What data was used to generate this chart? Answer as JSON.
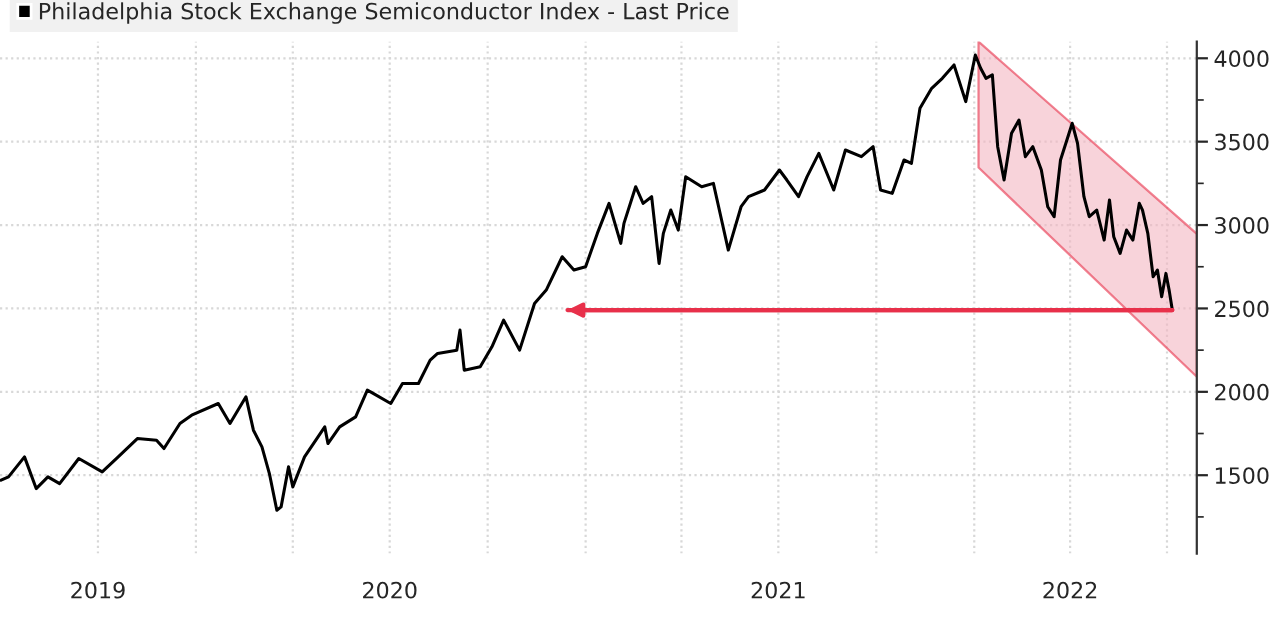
{
  "chart_data": {
    "type": "line",
    "x": [
      "2019-07-02",
      "2019-07-09",
      "2019-07-24",
      "2019-08-04",
      "2019-08-15",
      "2019-08-26",
      "2019-09-13",
      "2019-10-05",
      "2019-10-20",
      "2019-11-07",
      "2019-11-25",
      "2019-12-02",
      "2019-12-17",
      "2019-12-28",
      "2020-01-22",
      "2020-02-02",
      "2020-02-17",
      "2020-02-24",
      "2020-03-03",
      "2020-03-10",
      "2020-03-17",
      "2020-03-21",
      "2020-03-28",
      "2020-04-01",
      "2020-04-12",
      "2020-05-01",
      "2020-05-04",
      "2020-05-15",
      "2020-05-30",
      "2020-06-10",
      "2020-06-13",
      "2020-07-02",
      "2020-07-13",
      "2020-07-28",
      "2020-08-08",
      "2020-08-15",
      "2020-09-02",
      "2020-09-05",
      "2020-09-09",
      "2020-09-24",
      "2020-10-05",
      "2020-10-16",
      "2020-10-31",
      "2020-11-14",
      "2020-11-25",
      "2020-12-10",
      "2020-12-21",
      "2021-01-01",
      "2021-01-12",
      "2021-01-23",
      "2021-02-03",
      "2021-02-06",
      "2021-02-17",
      "2021-02-24",
      "2021-03-04",
      "2021-03-11",
      "2021-03-15",
      "2021-03-22",
      "2021-03-29",
      "2021-04-05",
      "2021-04-20",
      "2021-05-01",
      "2021-05-08",
      "2021-05-15",
      "2021-05-27",
      "2021-06-03",
      "2021-06-18",
      "2021-07-02",
      "2021-07-09",
      "2021-07-20",
      "2021-07-28",
      "2021-08-08",
      "2021-08-22",
      "2021-09-02",
      "2021-09-17",
      "2021-09-28",
      "2021-10-05",
      "2021-10-16",
      "2021-10-27",
      "2021-11-03",
      "2021-11-11",
      "2021-11-22",
      "2021-12-02",
      "2021-12-13",
      "2021-12-24",
      "2022-01-02",
      "2022-01-07",
      "2022-01-12",
      "2022-01-18",
      "2022-01-23",
      "2022-01-29",
      "2022-02-05",
      "2022-02-12",
      "2022-02-18",
      "2022-02-25",
      "2022-03-05",
      "2022-03-11",
      "2022-03-17",
      "2022-03-23",
      "2022-03-29",
      "2022-04-03",
      "2022-04-08",
      "2022-04-14",
      "2022-04-19",
      "2022-04-26",
      "2022-05-03",
      "2022-05-08",
      "2022-05-12",
      "2022-05-18",
      "2022-05-24",
      "2022-05-30",
      "2022-06-05",
      "2022-06-08",
      "2022-06-13",
      "2022-06-18",
      "2022-06-22",
      "2022-06-26",
      "2022-06-30",
      "2022-07-03",
      "2022-07-06"
    ],
    "series": [
      {
        "name": "Philadelphia Stock Exchange Semiconductor Index - Last Price",
        "color": "#000000",
        "values": [
          1470,
          1490,
          1610,
          1420,
          1490,
          1450,
          1600,
          1520,
          1610,
          1720,
          1710,
          1660,
          1810,
          1860,
          1930,
          1810,
          1970,
          1770,
          1670,
          1510,
          1290,
          1310,
          1550,
          1430,
          1610,
          1790,
          1690,
          1790,
          1850,
          2010,
          2000,
          1930,
          2050,
          2050,
          2190,
          2230,
          2250,
          2370,
          2130,
          2150,
          2270,
          2430,
          2250,
          2530,
          2610,
          2810,
          2730,
          2750,
          2950,
          3130,
          2890,
          3010,
          3230,
          3130,
          3170,
          2770,
          2950,
          3090,
          2970,
          3290,
          3230,
          3250,
          3050,
          2850,
          3110,
          3170,
          3210,
          3330,
          3270,
          3170,
          3290,
          3430,
          3210,
          3450,
          3410,
          3470,
          3210,
          3190,
          3390,
          3370,
          3700,
          3820,
          3880,
          3960,
          3740,
          4020,
          3940,
          3880,
          3900,
          3470,
          3270,
          3550,
          3630,
          3410,
          3470,
          3330,
          3110,
          3050,
          3390,
          3510,
          3610,
          3490,
          3170,
          3050,
          3090,
          2910,
          3150,
          2930,
          2830,
          2970,
          2910,
          3130,
          3090,
          2950,
          2690,
          2730,
          2570,
          2710,
          2610,
          2490
        ]
      },
      {
        "type": "area",
        "color": "#f4b6c2",
        "x": [
          "2022-01-05",
          "2022-07-29"
        ],
        "values": [
          null,
          null
        ],
        "lower": [
          3345,
          2090
        ],
        "upper": [
          4100,
          2947
        ]
      },
      {
        "type": "line",
        "color": "#e8304a",
        "x": [
          "2020-12-15",
          "2022-07-06"
        ],
        "values": [
          2490,
          2490
        ]
      }
    ],
    "xlim": [
      "2019-07-01",
      "2022-07-29"
    ],
    "ylim": [
      1030,
      4100
    ],
    "xticks": [
      {
        "value": "2019-10-01",
        "label": "2019"
      },
      {
        "value": "2020-01-01",
        "label": null
      },
      {
        "value": "2020-04-01",
        "label": null
      },
      {
        "value": "2020-07-01",
        "label": "2020"
      },
      {
        "value": "2020-10-01",
        "label": null
      },
      {
        "value": "2021-01-01",
        "label": null
      },
      {
        "value": "2021-04-01",
        "label": null
      },
      {
        "value": "2021-07-01",
        "label": "2021"
      },
      {
        "value": "2021-10-01",
        "label": null
      },
      {
        "value": "2022-01-01",
        "label": null
      },
      {
        "value": "2022-04-01",
        "label": "2022"
      },
      {
        "value": "2022-07-01",
        "label": null
      }
    ],
    "yticks": [
      {
        "value": 1250,
        "label": null
      },
      1500,
      {
        "value": 1750,
        "label": null
      },
      2000,
      {
        "value": 2250,
        "label": null
      },
      2500,
      {
        "value": 2750,
        "label": null
      },
      3000,
      {
        "value": 3250,
        "label": null
      },
      3500,
      {
        "value": 3750,
        "label": null
      },
      4000
    ],
    "grid": true,
    "legend": "top left"
  }
}
